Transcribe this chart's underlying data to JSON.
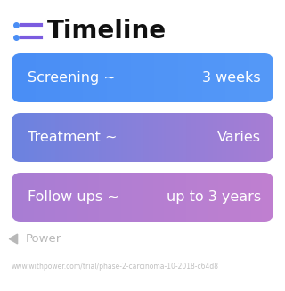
{
  "title": "Timeline",
  "background_color": "#ffffff",
  "bars": [
    {
      "label_left": "Screening ~",
      "label_right": "3 weeks",
      "gradient_start": "#4a8ef5",
      "gradient_end": "#5599f8"
    },
    {
      "label_left": "Treatment ~",
      "label_right": "Varies",
      "gradient_start": "#6b83e0",
      "gradient_end": "#a87dd4"
    },
    {
      "label_left": "Follow ups ~",
      "label_right": "up to 3 years",
      "gradient_start": "#a87dd4",
      "gradient_end": "#c080d0"
    }
  ],
  "icon_color": "#7b5ce0",
  "icon_dot_color": "#4a8ef5",
  "watermark_text": "Power",
  "watermark_color": "#b8b8b8",
  "url_text": "www.withpower.com/trial/phase-2-carcinoma-10-2018-c64d8",
  "url_color": "#c0c0c0",
  "title_fontsize": 20,
  "bar_fontsize": 11.5,
  "watermark_fontsize": 9.5
}
